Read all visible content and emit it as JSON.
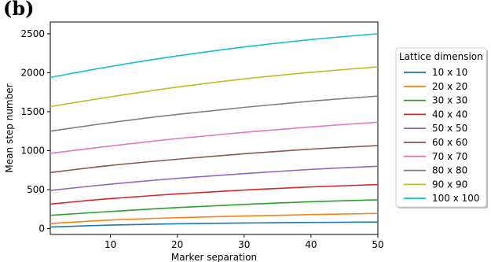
{
  "panel_label": "(b)",
  "chart_data": {
    "type": "line",
    "title": "",
    "xlabel": "Marker separation",
    "ylabel": "Mean step number",
    "xlim": [
      1,
      50
    ],
    "ylim": [
      -75,
      2650
    ],
    "xticks": [
      10,
      20,
      30,
      40,
      50
    ],
    "yticks": [
      0,
      500,
      1000,
      1500,
      2000,
      2500
    ],
    "grid": false,
    "legend": {
      "title": "Lattice dimension",
      "placement": "right, outside plot"
    },
    "series": [
      {
        "name": "10 x 10",
        "color": "#1f77b4",
        "x": [
          1,
          10,
          20,
          30,
          40,
          50
        ],
        "y": [
          20,
          45,
          62,
          72,
          79,
          85
        ]
      },
      {
        "name": "20 x 20",
        "color": "#ff7f0e",
        "x": [
          1,
          10,
          20,
          30,
          40,
          50
        ],
        "y": [
          65,
          110,
          140,
          162,
          180,
          195
        ]
      },
      {
        "name": "30 x 30",
        "color": "#2ca02c",
        "x": [
          1,
          10,
          20,
          30,
          40,
          50
        ],
        "y": [
          170,
          220,
          270,
          310,
          345,
          370
        ]
      },
      {
        "name": "40 x 40",
        "color": "#d62728",
        "x": [
          1,
          10,
          20,
          30,
          40,
          50
        ],
        "y": [
          315,
          385,
          445,
          495,
          535,
          565
        ]
      },
      {
        "name": "50 x 50",
        "color": "#9467bd",
        "x": [
          1,
          10,
          20,
          30,
          40,
          50
        ],
        "y": [
          490,
          570,
          645,
          705,
          760,
          800
        ]
      },
      {
        "name": "60 x 60",
        "color": "#8c564b",
        "x": [
          1,
          10,
          20,
          30,
          40,
          50
        ],
        "y": [
          720,
          810,
          890,
          960,
          1020,
          1065
        ]
      },
      {
        "name": "70 x 70",
        "color": "#e377c2",
        "x": [
          1,
          10,
          20,
          30,
          40,
          50
        ],
        "y": [
          965,
          1060,
          1155,
          1235,
          1305,
          1365
        ]
      },
      {
        "name": "80 x 80",
        "color": "#7f7f7f",
        "x": [
          1,
          10,
          20,
          30,
          40,
          50
        ],
        "y": [
          1250,
          1360,
          1465,
          1555,
          1635,
          1700
        ]
      },
      {
        "name": "90 x 90",
        "color": "#bcbd22",
        "x": [
          1,
          10,
          20,
          30,
          40,
          50
        ],
        "y": [
          1565,
          1690,
          1815,
          1920,
          2005,
          2075
        ]
      },
      {
        "name": "100 x 100",
        "color": "#17becf",
        "x": [
          1,
          10,
          20,
          30,
          40,
          50
        ],
        "y": [
          1940,
          2080,
          2215,
          2330,
          2425,
          2500
        ]
      }
    ]
  }
}
